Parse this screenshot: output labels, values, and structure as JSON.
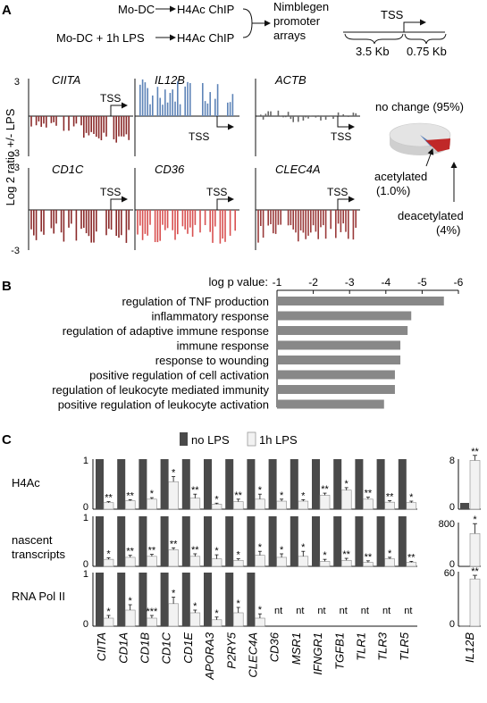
{
  "panel_labels": [
    "A",
    "B",
    "C"
  ],
  "panelA": {
    "flow": {
      "input1": "Mo-DC",
      "input2": "Mo-DC + 1h LPS",
      "chip": "H4Ac ChIP",
      "array_line1": "Nimblegen",
      "array_line2": "promoter",
      "array_line3": "arrays",
      "tss": "TSS",
      "upstream": "3.5 Kb",
      "downstream": "0.75 Kb"
    },
    "ylabel": "Log 2 ratio +/- LPS",
    "tick_pos": "3",
    "tick_neg": "-3",
    "tss": "TSS",
    "genes": [
      {
        "name": "CIITA",
        "color": "#8a2a2a"
      },
      {
        "name": "IL12B",
        "color": "#5e84b8"
      },
      {
        "name": "ACTB",
        "color": "#666666"
      },
      {
        "name": "CD1C",
        "color": "#8a2a2a"
      },
      {
        "name": "CD36",
        "color": "#d85050"
      },
      {
        "name": "CLEC4A",
        "color": "#9a3a3a"
      }
    ],
    "pie": {
      "no_change": "no change (95%)",
      "acetylated_1": "acetylated",
      "acetylated_2": "(1.0%)",
      "deacetylated_1": "deacetylated",
      "deacetylated_2": "(4%)",
      "colors": {
        "no_change": "#e4e4e4",
        "acetylated": "#5a7fb8",
        "deacetylated": "#c02828"
      }
    }
  },
  "chart_data": [
    {
      "type": "pie",
      "categories": [
        "no change",
        "acetylated",
        "deacetylated"
      ],
      "values": [
        95,
        1.0,
        4
      ]
    },
    {
      "type": "bar",
      "title": "log p value:",
      "xticks": [
        "-1",
        "-2",
        "-3",
        "-4",
        "-5",
        "-6"
      ],
      "xlim": [
        -1,
        -6
      ],
      "categories": [
        "regulation of TNF production",
        "inflammatory response",
        "regulation of adaptive immune response",
        "immune response",
        "response to wounding",
        "positive regulation of cell activation",
        "regulation of leukocyte mediated immunity",
        "positive regulation of leukocyte activation"
      ],
      "values": [
        -5.6,
        -4.7,
        -4.6,
        -4.4,
        -4.4,
        -4.25,
        -4.25,
        -3.95
      ]
    },
    {
      "type": "bar",
      "legend": [
        "no LPS",
        "1h LPS"
      ],
      "colors": {
        "no_lps": "#4a4a4a",
        "lps": "#f2f2f2"
      },
      "categories": [
        "CIITA",
        "CD1A",
        "CD1B",
        "CD1C",
        "CD1E",
        "APORA3",
        "P2RY5",
        "CLEC4A",
        "CD36",
        "MSR1",
        "IFNGR1",
        "TGFB1",
        "TLR1",
        "TLR3",
        "TLR5"
      ],
      "rows": [
        {
          "label": "H4Ac",
          "ylim": [
            0,
            1
          ],
          "ticks": [
            "1",
            "0"
          ],
          "no_lps": [
            1,
            1,
            1,
            1,
            1,
            1,
            1,
            1,
            1,
            1,
            1,
            1,
            1,
            1,
            1
          ],
          "lps": [
            0.13,
            0.17,
            0.2,
            0.55,
            0.22,
            0.1,
            0.15,
            0.2,
            0.16,
            0.16,
            0.28,
            0.38,
            0.2,
            0.14,
            0.13
          ],
          "lps_err": [
            0.02,
            0.02,
            0.03,
            0.1,
            0.08,
            0.02,
            0.05,
            0.1,
            0.04,
            0.03,
            0.04,
            0.05,
            0.04,
            0.03,
            0.03
          ],
          "sig": [
            "**",
            "**",
            "*",
            "*",
            "**",
            "*",
            "**",
            "*",
            "*",
            "*",
            "**",
            "*",
            "**",
            "**",
            "*"
          ]
        },
        {
          "label_1": "nascent",
          "label_2": "transcripts",
          "ylim": [
            0,
            1
          ],
          "ticks": [
            "1",
            "0"
          ],
          "no_lps": [
            1,
            1,
            1,
            1,
            1,
            1,
            1,
            1,
            1,
            1,
            1,
            1,
            1,
            1,
            1
          ],
          "lps": [
            0.14,
            0.18,
            0.2,
            0.33,
            0.2,
            0.15,
            0.12,
            0.22,
            0.18,
            0.2,
            0.1,
            0.12,
            0.08,
            0.15,
            0.08
          ],
          "lps_err": [
            0.03,
            0.04,
            0.04,
            0.04,
            0.05,
            0.08,
            0.03,
            0.08,
            0.07,
            0.1,
            0.04,
            0.04,
            0.03,
            0.03,
            0.02
          ],
          "sig": [
            "*",
            "**",
            "**",
            "**",
            "**",
            "*",
            "*",
            "*",
            "*",
            "*",
            "*",
            "**",
            "**",
            "*",
            "**"
          ]
        },
        {
          "label": "RNA Pol II",
          "ylim": [
            0,
            1
          ],
          "ticks": [
            "1",
            "0"
          ],
          "no_lps": [
            1,
            1,
            1,
            1,
            1,
            1,
            1,
            1
          ],
          "lps": [
            0.15,
            0.3,
            0.15,
            0.42,
            0.25,
            0.12,
            0.25,
            0.15
          ],
          "lps_err": [
            0.05,
            0.1,
            0.05,
            0.12,
            0.05,
            0.05,
            0.1,
            0.08
          ],
          "sig": [
            "*",
            "*",
            "***",
            "*",
            "*",
            "*",
            "*",
            "*"
          ],
          "not_tested": "nt"
        }
      ],
      "il12b": {
        "name": "IL12B",
        "rows": [
          {
            "ylim": [
              0,
              8
            ],
            "ticks": [
              "8",
              "0"
            ],
            "no_lps": 1,
            "lps": 7.8,
            "lps_err": 0.8,
            "sig": "**"
          },
          {
            "ylim": [
              0,
              800
            ],
            "ticks": [
              "800",
              "0"
            ],
            "no_lps": 5,
            "lps": 600,
            "lps_err": 180,
            "sig": "*"
          },
          {
            "ylim": [
              0,
              60
            ],
            "ticks": [
              "60",
              "0"
            ],
            "no_lps": 0.5,
            "lps": 52,
            "lps_err": 4,
            "sig": "**"
          }
        ]
      }
    }
  ]
}
